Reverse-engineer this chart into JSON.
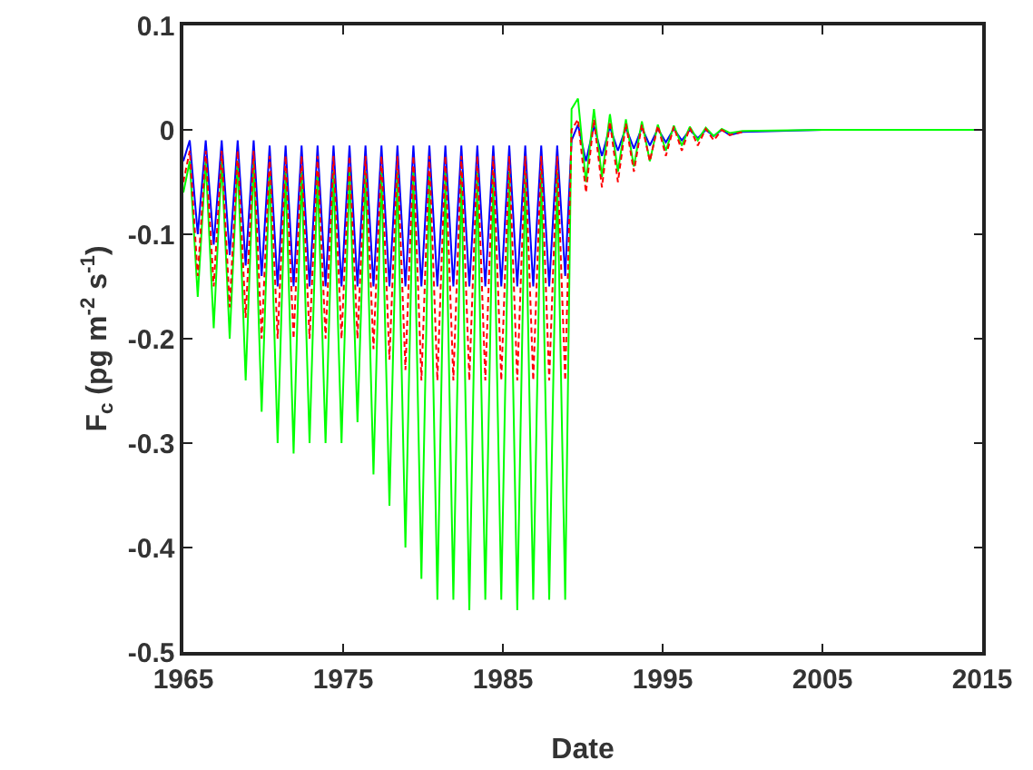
{
  "chart_data": {
    "type": "line",
    "xlabel": "Date",
    "ylabel": "F$_{c}$ (pg m$^{-2}$ s$^{-1}$)",
    "x": [
      1965.0,
      1965.4,
      1965.9,
      1966.4,
      1966.9,
      1967.4,
      1967.9,
      1968.4,
      1968.9,
      1969.4,
      1969.9,
      1970.4,
      1970.9,
      1971.4,
      1971.9,
      1972.4,
      1972.9,
      1973.4,
      1973.9,
      1974.4,
      1974.9,
      1975.4,
      1975.9,
      1976.4,
      1976.9,
      1977.4,
      1977.9,
      1978.4,
      1978.9,
      1979.4,
      1979.9,
      1980.4,
      1980.9,
      1981.4,
      1981.9,
      1982.4,
      1982.9,
      1983.4,
      1983.9,
      1984.4,
      1984.9,
      1985.4,
      1985.9,
      1986.4,
      1986.9,
      1987.4,
      1987.9,
      1988.4,
      1988.9,
      1989.3,
      1989.7,
      1990.2,
      1990.7,
      1991.2,
      1991.7,
      1992.2,
      1992.7,
      1993.2,
      1993.7,
      1994.2,
      1994.7,
      1995.2,
      1995.7,
      1996.2,
      1996.7,
      1997.2,
      1997.7,
      1998.2,
      1998.7,
      1999.2,
      2000,
      2005,
      2015
    ],
    "series": [
      {
        "color": "#00ff00",
        "line_style": "solid",
        "values": [
          -0.06,
          -0.03,
          -0.16,
          -0.03,
          -0.19,
          -0.03,
          -0.2,
          -0.03,
          -0.24,
          -0.03,
          -0.27,
          -0.04,
          -0.3,
          -0.04,
          -0.31,
          -0.04,
          -0.3,
          -0.04,
          -0.3,
          -0.04,
          -0.3,
          -0.04,
          -0.28,
          -0.04,
          -0.33,
          -0.04,
          -0.36,
          -0.04,
          -0.4,
          -0.04,
          -0.43,
          -0.04,
          -0.45,
          -0.04,
          -0.45,
          -0.04,
          -0.46,
          -0.04,
          -0.45,
          -0.04,
          -0.45,
          -0.04,
          -0.46,
          -0.04,
          -0.45,
          -0.04,
          -0.45,
          -0.04,
          -0.45,
          0.02,
          0.03,
          -0.05,
          0.02,
          -0.045,
          0.015,
          -0.04,
          0.01,
          -0.035,
          0.008,
          -0.03,
          0.005,
          -0.02,
          0.004,
          -0.015,
          0.003,
          -0.01,
          0.002,
          -0.006,
          0.001,
          -0.003,
          -0.001,
          0,
          0
        ]
      },
      {
        "color": "#ff0000",
        "line_style": "dashed",
        "values": [
          -0.05,
          -0.02,
          -0.14,
          -0.02,
          -0.15,
          -0.02,
          -0.17,
          -0.02,
          -0.18,
          -0.02,
          -0.2,
          -0.025,
          -0.2,
          -0.025,
          -0.2,
          -0.025,
          -0.2,
          -0.025,
          -0.2,
          -0.025,
          -0.2,
          -0.025,
          -0.2,
          -0.025,
          -0.21,
          -0.025,
          -0.22,
          -0.025,
          -0.23,
          -0.025,
          -0.24,
          -0.025,
          -0.24,
          -0.025,
          -0.24,
          -0.025,
          -0.24,
          -0.025,
          -0.24,
          -0.025,
          -0.24,
          -0.025,
          -0.24,
          -0.025,
          -0.24,
          -0.025,
          -0.24,
          -0.025,
          -0.24,
          0.0,
          0.01,
          -0.06,
          0.01,
          -0.055,
          0.008,
          -0.05,
          0.006,
          -0.04,
          0.005,
          -0.03,
          0.004,
          -0.025,
          0.003,
          -0.02,
          0.002,
          -0.015,
          0.001,
          -0.01,
          0,
          -0.005,
          -0.002,
          null,
          null
        ]
      },
      {
        "color": "#0000ff",
        "line_style": "solid",
        "values": [
          -0.03,
          -0.01,
          -0.1,
          -0.01,
          -0.11,
          -0.01,
          -0.12,
          -0.01,
          -0.13,
          -0.01,
          -0.14,
          -0.015,
          -0.15,
          -0.015,
          -0.15,
          -0.015,
          -0.15,
          -0.015,
          -0.15,
          -0.015,
          -0.15,
          -0.015,
          -0.15,
          -0.015,
          -0.15,
          -0.015,
          -0.15,
          -0.015,
          -0.15,
          -0.015,
          -0.15,
          -0.015,
          -0.15,
          -0.015,
          -0.15,
          -0.015,
          -0.15,
          -0.015,
          -0.15,
          -0.015,
          -0.15,
          -0.015,
          -0.15,
          -0.015,
          -0.15,
          -0.015,
          -0.15,
          -0.015,
          -0.14,
          -0.01,
          0.005,
          -0.03,
          0.004,
          -0.025,
          0.003,
          -0.02,
          0.002,
          -0.018,
          0.002,
          -0.015,
          0.001,
          -0.012,
          0.001,
          -0.01,
          0,
          -0.008,
          0,
          -0.006,
          0,
          -0.005,
          -0.002,
          0,
          0
        ]
      }
    ],
    "xlim": [
      1965,
      2015
    ],
    "xticks": [
      1965,
      1975,
      1985,
      1995,
      2005,
      2015
    ],
    "ylim": [
      -0.5,
      0.1
    ],
    "yticks": [
      -0.5,
      -0.4,
      -0.3,
      -0.2,
      -0.1,
      0,
      0.1
    ],
    "grid": false,
    "marker": "none"
  }
}
